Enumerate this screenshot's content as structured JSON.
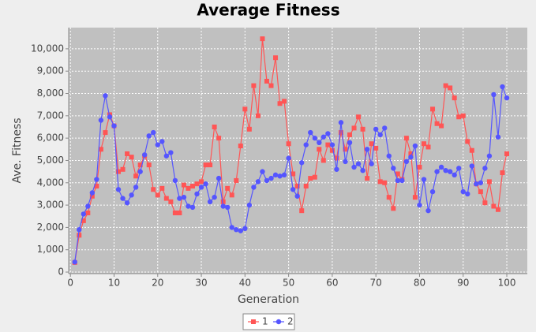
{
  "chart_data": {
    "type": "line",
    "title": "Average Fitness",
    "xlabel": "Generation",
    "ylabel": "Ave. Fitness",
    "x": [
      1,
      2,
      3,
      4,
      5,
      6,
      7,
      8,
      9,
      10,
      11,
      12,
      13,
      14,
      15,
      16,
      17,
      18,
      19,
      20,
      21,
      22,
      23,
      24,
      25,
      26,
      27,
      28,
      29,
      30,
      31,
      32,
      33,
      34,
      35,
      36,
      37,
      38,
      39,
      40,
      41,
      42,
      43,
      44,
      45,
      46,
      47,
      48,
      49,
      50,
      51,
      52,
      53,
      54,
      55,
      56,
      57,
      58,
      59,
      60,
      61,
      62,
      63,
      64,
      65,
      66,
      67,
      68,
      69,
      70,
      71,
      72,
      73,
      74,
      75,
      76,
      77,
      78,
      79,
      80,
      81,
      82,
      83,
      84,
      85,
      86,
      87,
      88,
      89,
      90,
      91,
      92,
      93,
      94,
      95,
      96,
      97,
      98,
      99,
      100
    ],
    "series": [
      {
        "name": "1",
        "color": "#ff5555",
        "marker": "square",
        "values": [
          430,
          1650,
          2300,
          2650,
          3400,
          3850,
          5500,
          6250,
          7050,
          6550,
          4500,
          4600,
          5300,
          5150,
          4300,
          4800,
          5200,
          4800,
          3700,
          3450,
          3750,
          3300,
          3150,
          2650,
          2650,
          3900,
          3750,
          3850,
          3950,
          4050,
          4800,
          4800,
          6500,
          6000,
          3150,
          3750,
          3450,
          4100,
          5650,
          7300,
          6400,
          8350,
          7000,
          10450,
          8550,
          8350,
          9600,
          7550,
          7650,
          5750,
          4400,
          3850,
          2750,
          3850,
          4200,
          4250,
          5500,
          5000,
          5700,
          5450,
          5100,
          6250,
          5500,
          6150,
          6450,
          6950,
          6400,
          4200,
          5750,
          5550,
          4050,
          4000,
          3350,
          2850,
          4400,
          4150,
          6000,
          5300,
          3350,
          4700,
          5750,
          5600,
          7300,
          6650,
          6550,
          8350,
          8250,
          7800,
          6950,
          7000,
          5850,
          5450,
          3950,
          3600,
          3100,
          4050,
          2950,
          2800,
          4450,
          5300
        ]
      },
      {
        "name": "2",
        "color": "#5555ff",
        "marker": "circle",
        "values": [
          450,
          1900,
          2600,
          2950,
          3550,
          4150,
          6800,
          7900,
          6950,
          6550,
          3700,
          3300,
          3100,
          3450,
          3800,
          4500,
          5250,
          6100,
          6250,
          5700,
          5850,
          5200,
          5350,
          4100,
          3300,
          3350,
          2950,
          2900,
          3500,
          3800,
          3950,
          3150,
          3350,
          4200,
          2950,
          2900,
          2000,
          1900,
          1850,
          1950,
          3000,
          3800,
          4050,
          4500,
          4100,
          4200,
          4350,
          4300,
          4350,
          5100,
          3700,
          3400,
          4900,
          5700,
          6250,
          6000,
          5800,
          6050,
          6200,
          5700,
          4600,
          6700,
          4950,
          5800,
          4700,
          4850,
          4550,
          5500,
          4850,
          6400,
          6150,
          6450,
          5200,
          4650,
          4100,
          4100,
          4950,
          5150,
          5650,
          3000,
          4150,
          2750,
          3600,
          4500,
          4700,
          4550,
          4500,
          4350,
          4650,
          3600,
          3500,
          4750,
          3950,
          4000,
          4650,
          5200,
          7950,
          6050,
          8300,
          7800
        ]
      }
    ],
    "xlim": [
      -0.4,
      104.7
    ],
    "xticks": [
      0,
      10,
      20,
      30,
      40,
      50,
      60,
      70,
      80,
      90,
      100
    ],
    "ylim": [
      -70,
      10950
    ],
    "yticks": [
      0,
      {
        "value": 1000,
        "label": "1,000"
      },
      {
        "value": 2000,
        "label": "2,000"
      },
      {
        "value": 3000,
        "label": "3,000"
      },
      {
        "value": 4000,
        "label": "4,000"
      },
      {
        "value": 5000,
        "label": "5,000"
      },
      {
        "value": 6000,
        "label": "6,000"
      },
      {
        "value": 7000,
        "label": "7,000"
      },
      {
        "value": 8000,
        "label": "8,000"
      },
      {
        "value": 9000,
        "label": "9,000"
      },
      {
        "value": 10000,
        "label": "10,000"
      }
    ],
    "grid": true,
    "legend": "bottom"
  }
}
